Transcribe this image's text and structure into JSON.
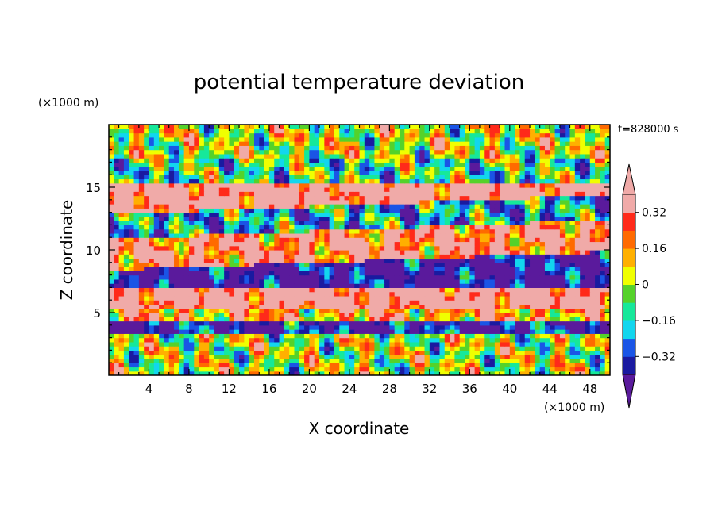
{
  "chart_data": {
    "type": "heatmap",
    "title": "potential temperature deviation",
    "xlabel": "X coordinate",
    "ylabel": "Z coordinate",
    "x_unit": "(×1000 m)",
    "y_unit": "(×1000 m)",
    "time_label": "t=828000 s",
    "xlim": [
      0,
      50
    ],
    "ylim": [
      0,
      20
    ],
    "x_ticks": [
      4,
      8,
      12,
      16,
      20,
      24,
      28,
      32,
      36,
      40,
      44,
      48
    ],
    "y_ticks": [
      5,
      10,
      15
    ],
    "colorbar": {
      "levels": [
        -0.4,
        -0.32,
        -0.24,
        -0.16,
        -0.08,
        0,
        0.08,
        0.16,
        0.24,
        0.32,
        0.4
      ],
      "labels": [
        "-0.32",
        "-0.16",
        "0",
        "0.16",
        "0.32"
      ],
      "label_values": [
        -0.32,
        -0.16,
        0,
        0.16,
        0.32
      ],
      "colors": [
        "#5a1a9c",
        "#1a1aa0",
        "#1a55e6",
        "#12d6ee",
        "#16e89a",
        "#55d22a",
        "#f0ff00",
        "#ffb000",
        "#ff6a00",
        "#ff2a1a",
        "#f0aaa8"
      ],
      "extend": "both"
    },
    "bands": [
      {
        "z": [
          17.5,
          20
        ],
        "value": 0.02
      },
      {
        "z": [
          15.5,
          17.5
        ],
        "value": -0.1
      },
      {
        "z": [
          13.5,
          15.5
        ],
        "value": 0.45
      },
      {
        "z": [
          11.5,
          13.5
        ],
        "value": -0.2
      },
      {
        "z": [
          9,
          11.5
        ],
        "value": 0.3
      },
      {
        "z": [
          7,
          9
        ],
        "value": -0.45
      },
      {
        "z": [
          5.5,
          7
        ],
        "value": 0.45
      },
      {
        "z": [
          4.3,
          5.5
        ],
        "value": 0.16
      },
      {
        "z": [
          3.3,
          4.3
        ],
        "value": -0.4
      },
      {
        "z": [
          0,
          3.3
        ],
        "value": 0.0
      }
    ]
  }
}
